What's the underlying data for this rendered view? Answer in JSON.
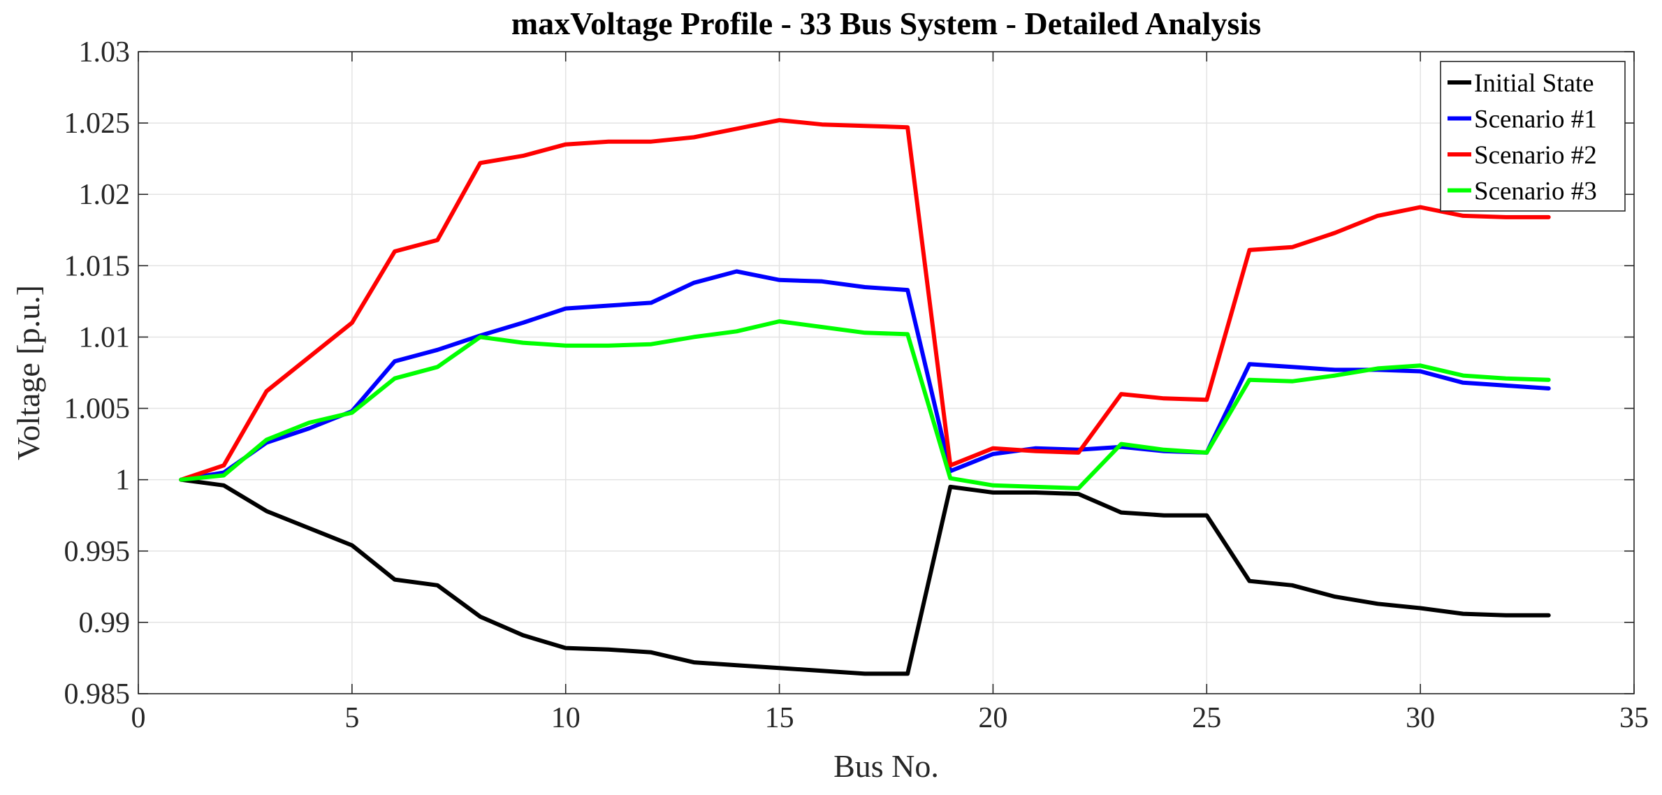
{
  "chart_data": {
    "type": "line",
    "title": "maxVoltage Profile - 33 Bus System - Detailed Analysis",
    "xlabel": "Bus No.",
    "ylabel": "Voltage [p.u.]",
    "xlim": [
      0,
      35
    ],
    "ylim": [
      0.985,
      1.03
    ],
    "xticks": [
      0,
      5,
      10,
      15,
      20,
      25,
      30,
      35
    ],
    "xtick_labels": [
      "0",
      "5",
      "10",
      "15",
      "20",
      "25",
      "30",
      "35"
    ],
    "yticks": [
      0.985,
      0.99,
      0.995,
      1.0,
      1.005,
      1.01,
      1.015,
      1.02,
      1.025,
      1.03
    ],
    "ytick_labels": [
      "0.985",
      "0.99",
      "0.995",
      "1",
      "1.005",
      "1.01",
      "1.015",
      "1.02",
      "1.025",
      "1.03"
    ],
    "grid": true,
    "legend_position": "top-right",
    "x": [
      1,
      2,
      3,
      4,
      5,
      6,
      7,
      8,
      9,
      10,
      11,
      12,
      13,
      14,
      15,
      16,
      17,
      18,
      19,
      20,
      21,
      22,
      23,
      24,
      25,
      26,
      27,
      28,
      29,
      30,
      31,
      32,
      33
    ],
    "series": [
      {
        "name": "Initial State",
        "color": "#000000",
        "values": [
          1.0,
          0.9996,
          0.9978,
          0.9966,
          0.9954,
          0.993,
          0.9926,
          0.9904,
          0.9891,
          0.9882,
          0.9881,
          0.9879,
          0.9872,
          0.987,
          0.9868,
          0.9866,
          0.9864,
          0.9864,
          0.9995,
          0.9991,
          0.9991,
          0.999,
          0.9977,
          0.9975,
          0.9975,
          0.9929,
          0.9926,
          0.9918,
          0.9913,
          0.991,
          0.9906,
          0.9905,
          0.9905
        ]
      },
      {
        "name": "Scenario #1",
        "color": "#0000ff",
        "values": [
          1.0,
          1.0005,
          1.0026,
          1.0036,
          1.0048,
          1.0083,
          1.0091,
          1.0101,
          1.011,
          1.012,
          1.0122,
          1.0124,
          1.0138,
          1.0146,
          1.014,
          1.0139,
          1.0135,
          1.0133,
          1.0006,
          1.0018,
          1.0022,
          1.0021,
          1.0023,
          1.002,
          1.0019,
          1.0081,
          1.0079,
          1.0077,
          1.0077,
          1.0076,
          1.0068,
          1.0066,
          1.0064
        ]
      },
      {
        "name": "Scenario #2",
        "color": "#ff0000",
        "values": [
          1.0,
          1.001,
          1.0062,
          1.0086,
          1.011,
          1.016,
          1.0168,
          1.0222,
          1.0227,
          1.0235,
          1.0237,
          1.0237,
          1.024,
          1.0246,
          1.0252,
          1.0249,
          1.0248,
          1.0247,
          1.001,
          1.0022,
          1.002,
          1.0019,
          1.006,
          1.0057,
          1.0056,
          1.0161,
          1.0163,
          1.0173,
          1.0185,
          1.0191,
          1.0185,
          1.0184,
          1.0184
        ]
      },
      {
        "name": "Scenario #3",
        "color": "#00ff00",
        "values": [
          1.0,
          1.0003,
          1.0028,
          1.004,
          1.0047,
          1.0071,
          1.0079,
          1.01,
          1.0096,
          1.0094,
          1.0094,
          1.0095,
          1.01,
          1.0104,
          1.0111,
          1.0107,
          1.0103,
          1.0102,
          1.0001,
          0.9996,
          0.9995,
          0.9994,
          1.0025,
          1.0021,
          1.0019,
          1.007,
          1.0069,
          1.0073,
          1.0078,
          1.008,
          1.0073,
          1.0071,
          1.007
        ]
      }
    ]
  }
}
